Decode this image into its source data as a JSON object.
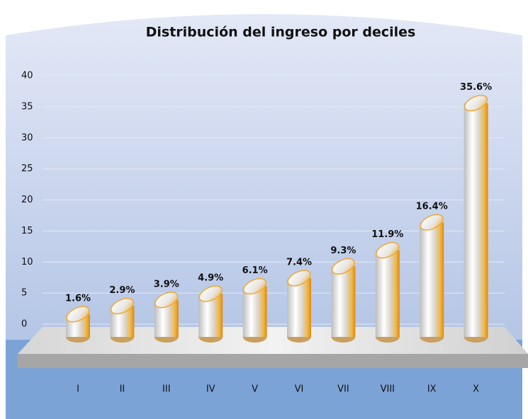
{
  "chart_data": {
    "type": "bar",
    "title": "Distribución del ingreso por deciles",
    "categories": [
      "I",
      "II",
      "III",
      "IV",
      "V",
      "VI",
      "VII",
      "VIII",
      "IX",
      "X"
    ],
    "values": [
      1.6,
      2.9,
      3.9,
      4.9,
      6.1,
      7.4,
      9.3,
      11.9,
      16.4,
      35.6
    ],
    "value_labels": [
      "1.6%",
      "2.9%",
      "3.9%",
      "4.9%",
      "6.1%",
      "7.4%",
      "9.3%",
      "11.9%",
      "16.4%",
      "35.6%"
    ],
    "color": "#f0a830",
    "ylim": [
      0,
      40
    ],
    "yticks": [
      0,
      5,
      10,
      15,
      20,
      25,
      30,
      35,
      40
    ],
    "grid": true
  }
}
